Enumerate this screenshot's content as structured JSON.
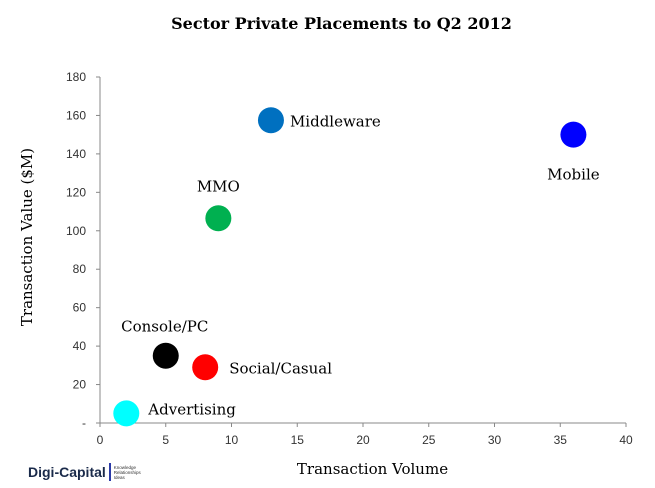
{
  "chart_data": {
    "type": "scatter",
    "title": "Sector Private Placements to Q2 2012",
    "xlabel": "Transaction Volume",
    "ylabel": "Transaction Value ($M)",
    "xlim": [
      0,
      40
    ],
    "ylim": [
      0,
      180
    ],
    "xticks": [
      "0",
      "5",
      "10",
      "15",
      "20",
      "25",
      "30",
      "35",
      "40"
    ],
    "yticks": [
      "-",
      "20",
      "40",
      "60",
      "80",
      "100",
      "120",
      "140",
      "160",
      "180"
    ],
    "grid": false,
    "points": [
      {
        "label": "Middleware",
        "x": 13,
        "y": 157.5,
        "color": "#0070c0"
      },
      {
        "label": "Mobile",
        "x": 36,
        "y": 150,
        "color": "#0000ff"
      },
      {
        "label": "MMO",
        "x": 9,
        "y": 106.5,
        "color": "#00b050"
      },
      {
        "label": "Console/PC",
        "x": 5,
        "y": 35,
        "color": "#000000"
      },
      {
        "label": "Social/Casual",
        "x": 8,
        "y": 29,
        "color": "#ff0000"
      },
      {
        "label": "Advertising",
        "x": 2,
        "y": 5,
        "color": "#00ffff"
      }
    ]
  },
  "logo": {
    "name": "Digi-Capital",
    "tagline": [
      "Knowledge",
      "Relationships",
      "Ideas"
    ]
  }
}
